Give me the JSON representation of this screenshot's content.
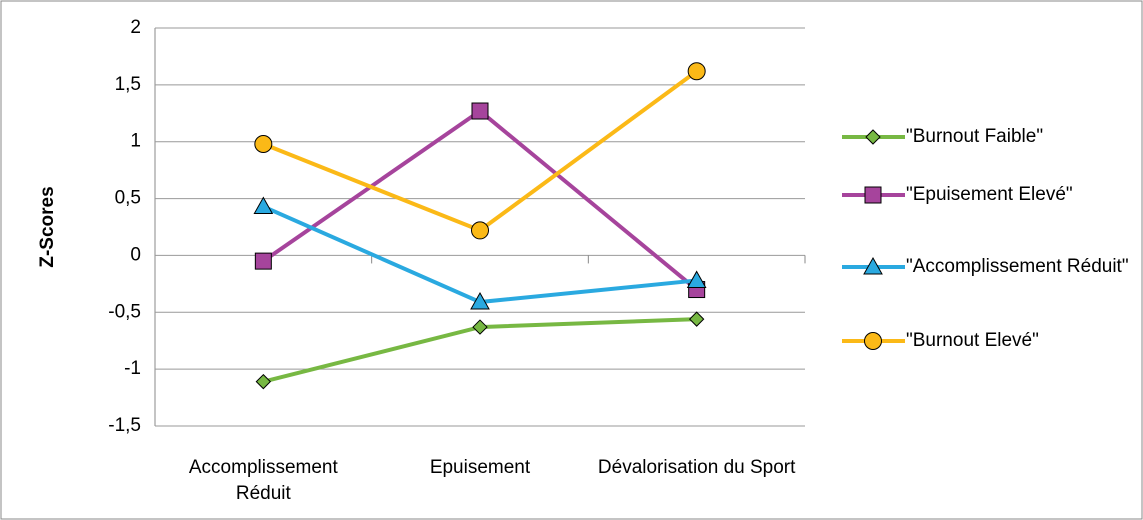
{
  "chart_data": {
    "type": "line",
    "ylabel": "Z-Scores",
    "categories": [
      "Accomplissement Réduit",
      "Epuisement",
      "Dévalorisation du Sport"
    ],
    "series": [
      {
        "name": "\"Burnout Faible\"",
        "color": "#77b843",
        "marker": "diamond",
        "values": [
          -1.11,
          -0.63,
          -0.56
        ]
      },
      {
        "name": "\"Epuisement Elevé\"",
        "color": "#a6449c",
        "marker": "square",
        "values": [
          -0.05,
          1.27,
          -0.3
        ]
      },
      {
        "name": "\"Accomplissement Réduit\"",
        "color": "#2aa9e0",
        "marker": "triangle",
        "values": [
          0.43,
          -0.41,
          -0.22
        ]
      },
      {
        "name": "\"Burnout Elevé\"",
        "color": "#fbb917",
        "marker": "circle",
        "values": [
          0.98,
          0.22,
          1.62
        ]
      }
    ],
    "ylim": [
      -1.5,
      2
    ],
    "yticks": [
      {
        "value": -1.5,
        "label": "-1,5"
      },
      -1,
      {
        "value": -0.5,
        "label": "-0,5"
      },
      0,
      {
        "value": 0.5,
        "label": "0,5"
      },
      1,
      {
        "value": 1.5,
        "label": "1,5"
      },
      2
    ],
    "grid": true,
    "legend": "right"
  }
}
